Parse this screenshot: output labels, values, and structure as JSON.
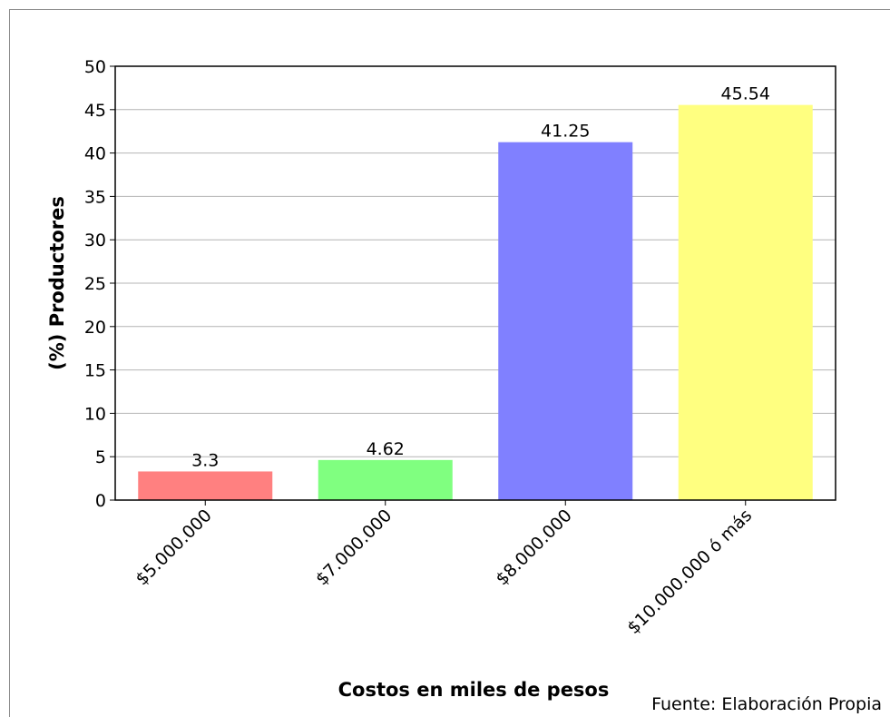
{
  "chart_data": {
    "type": "bar",
    "title": "",
    "xlabel": "Costos en miles de pesos",
    "ylabel": "(%) Productores",
    "categories": [
      "$5.000.000",
      "$7.000.000",
      "$8.000.000",
      "$10.000.000 ó más"
    ],
    "values": [
      3.3,
      4.62,
      41.25,
      45.54
    ],
    "data_labels": [
      "3.3",
      "4.62",
      "41.25",
      "45.54"
    ],
    "bar_colors": [
      "#ff8080",
      "#80ff80",
      "#8080ff",
      "#ffff80"
    ],
    "ylim": [
      0,
      50
    ],
    "yticks": [
      0,
      5,
      10,
      15,
      20,
      25,
      30,
      35,
      40,
      45,
      50
    ],
    "grid": true,
    "legend": "none"
  },
  "source_note": "Fuente: Elaboración Propia"
}
